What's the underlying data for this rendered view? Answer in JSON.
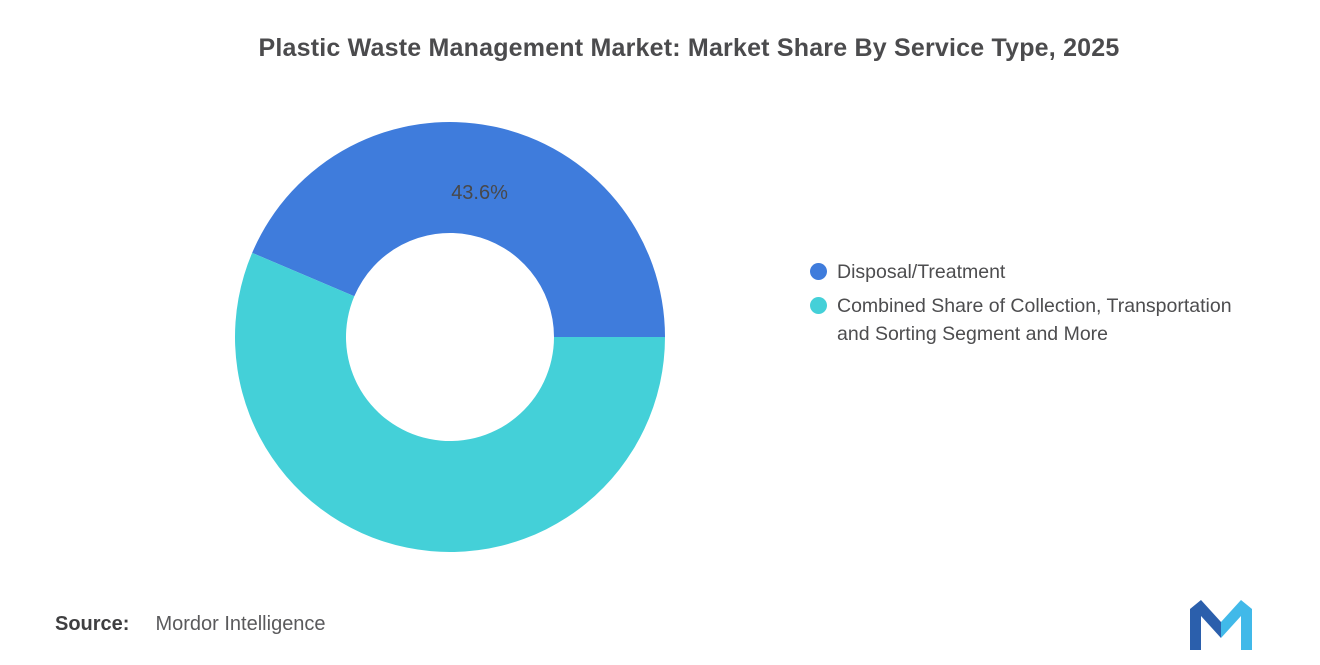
{
  "title": "Plastic Waste Management Market: Market Share By Service Type, 2025",
  "source": {
    "label": "Source:",
    "value": "Mordor Intelligence"
  },
  "chart_data": {
    "type": "pie",
    "donut": true,
    "start_angle": 0,
    "direction": "counterclockwise",
    "title": "Plastic Waste Management Market: Market Share By Service Type, 2025",
    "legend_position": "right",
    "slices": [
      {
        "label": "Disposal/Treatment",
        "value": 43.6,
        "data_label": "43.6%",
        "color": "#3f7cdc"
      },
      {
        "label": "Combined Share of Collection, Transportation and Sorting Segment and More",
        "value": 56.4,
        "data_label": "",
        "color": "#44d0d8"
      }
    ]
  },
  "legend": {
    "items": [
      {
        "label": "Disposal/Treatment",
        "color": "#3f7cdc"
      },
      {
        "label": "Combined Share of Collection, Transportation and Sorting Segment and More",
        "color": "#44d0d8"
      }
    ]
  },
  "logo": {
    "name": "mordor-intelligence-logo",
    "colors": {
      "primary": "#2b5fac",
      "secondary": "#41b9e9"
    }
  }
}
